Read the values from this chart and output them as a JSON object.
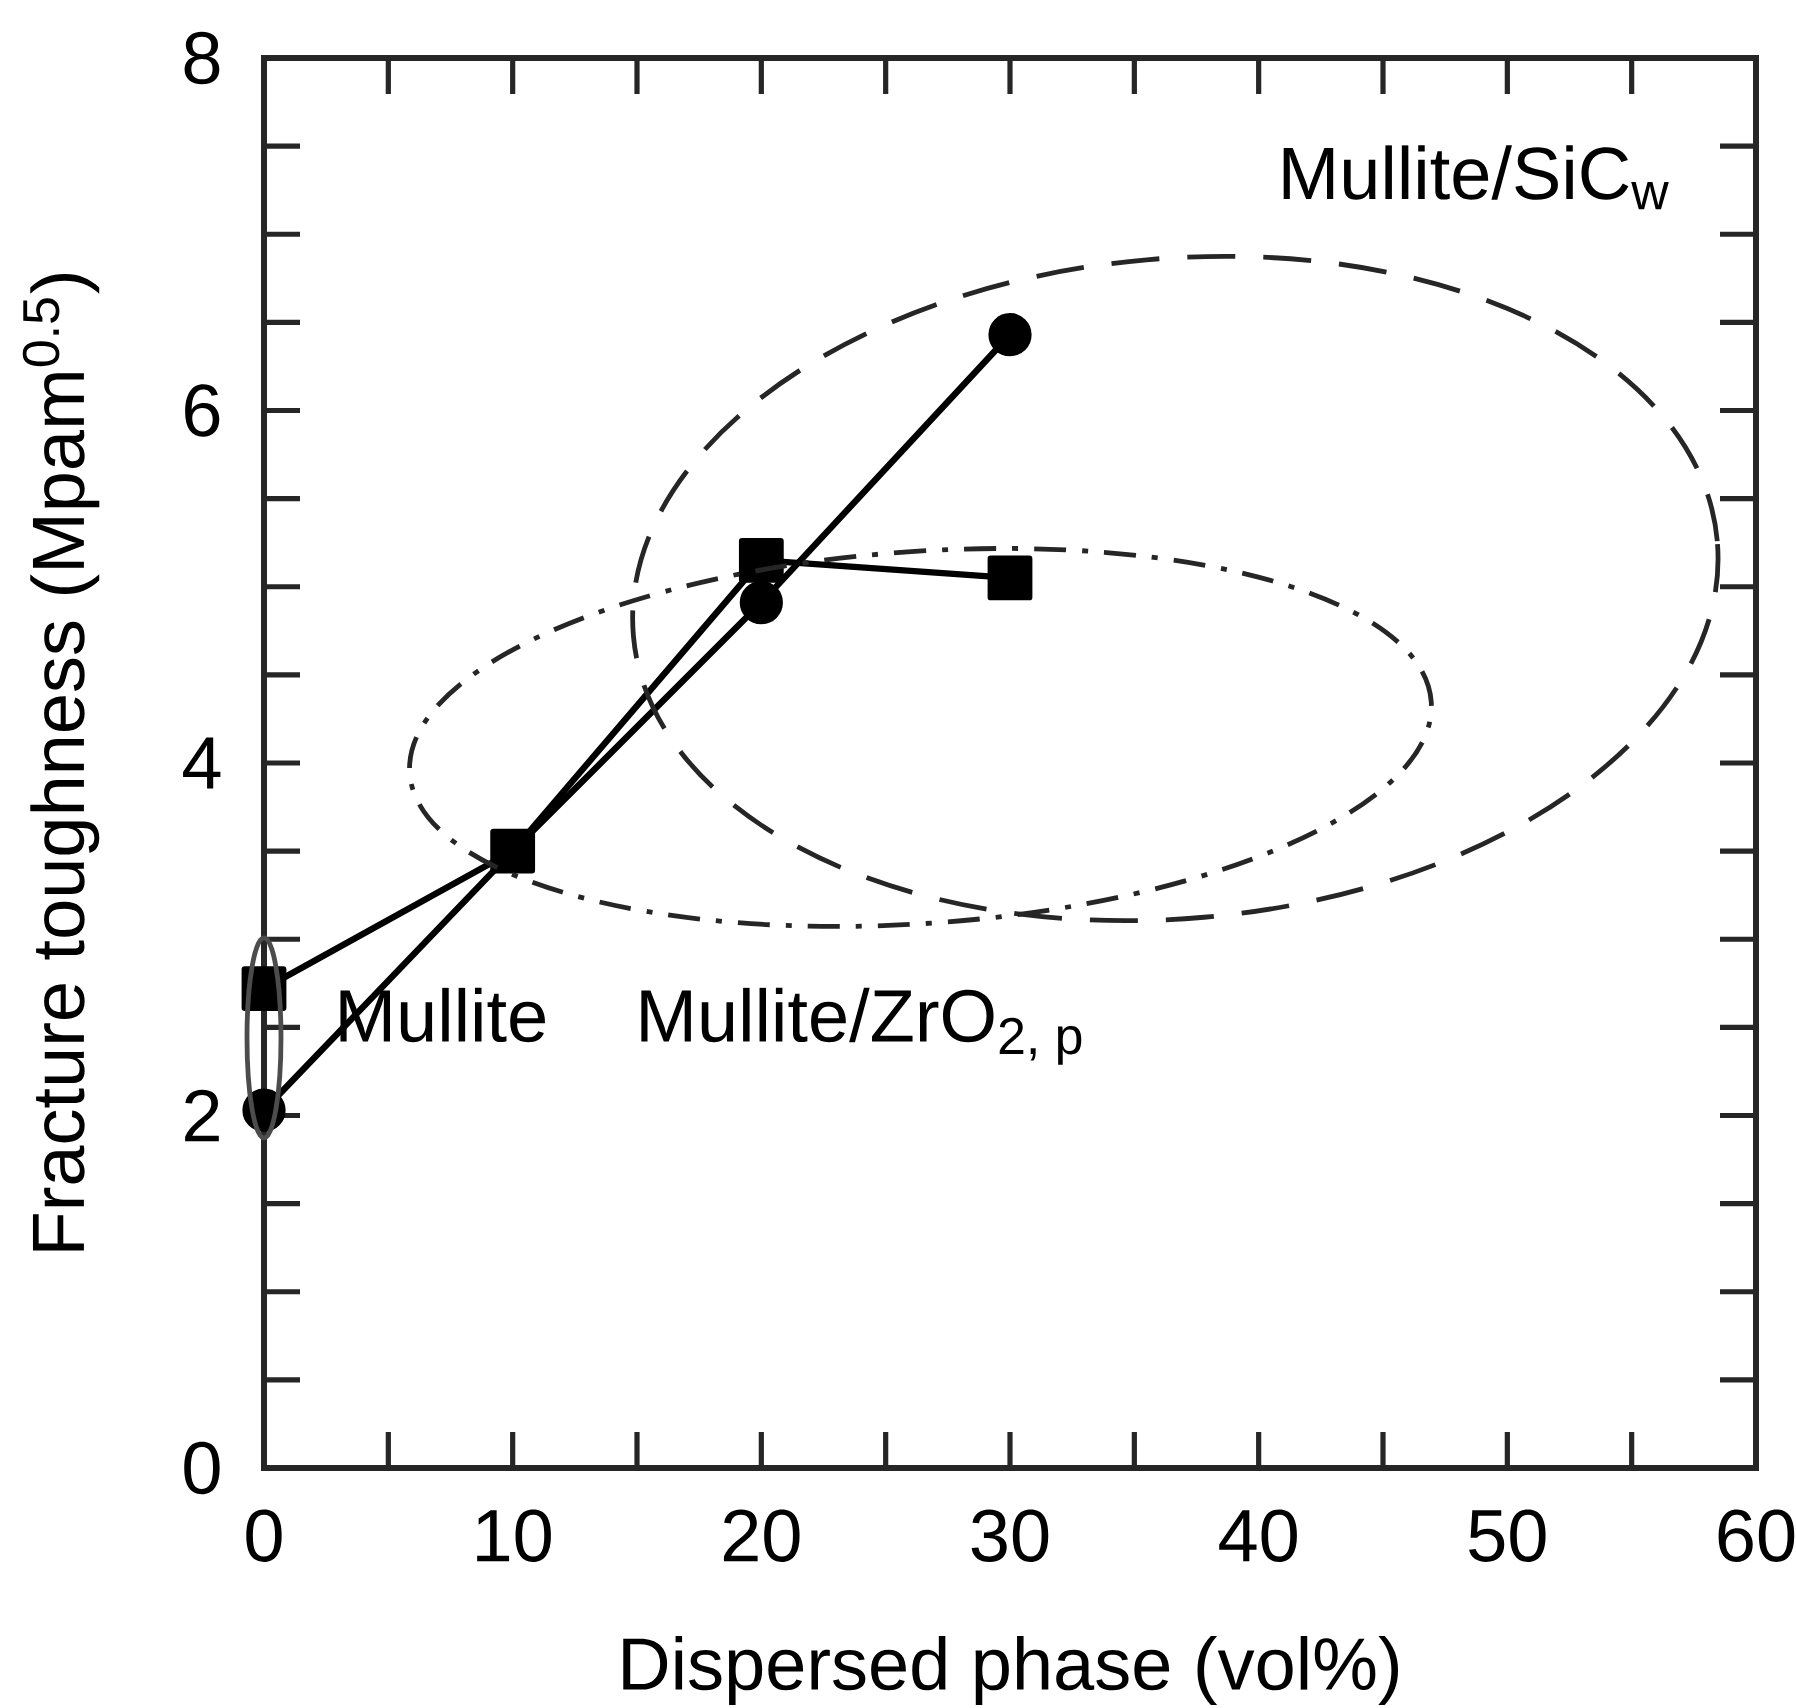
{
  "chart_data": {
    "type": "line",
    "xlabel": "Dispersed phase (vol%)",
    "ylabel": "Fracture toughness (Mpam$^{0.5}$)",
    "x": [
      0,
      10,
      20,
      30
    ],
    "series": [
      {
        "color": "#000000",
        "marker": "circle",
        "values": [
          2.03,
          3.5,
          4.91,
          6.43
        ]
      },
      {
        "color": "#000000",
        "marker": "square",
        "values": [
          2.72,
          3.5,
          5.15,
          5.05
        ]
      }
    ],
    "xlim": [
      0,
      60
    ],
    "ylim": [
      0,
      8
    ],
    "xticks": [
      0,
      10,
      20,
      30,
      40,
      50,
      60
    ],
    "yticks": [
      0,
      2,
      4,
      6,
      8
    ],
    "line_style": "solid",
    "annotations": [
      "Mullite/SiC$_{w}$",
      "Mullite",
      "Mullite/ZrO$_{2, p}$"
    ]
  }
}
